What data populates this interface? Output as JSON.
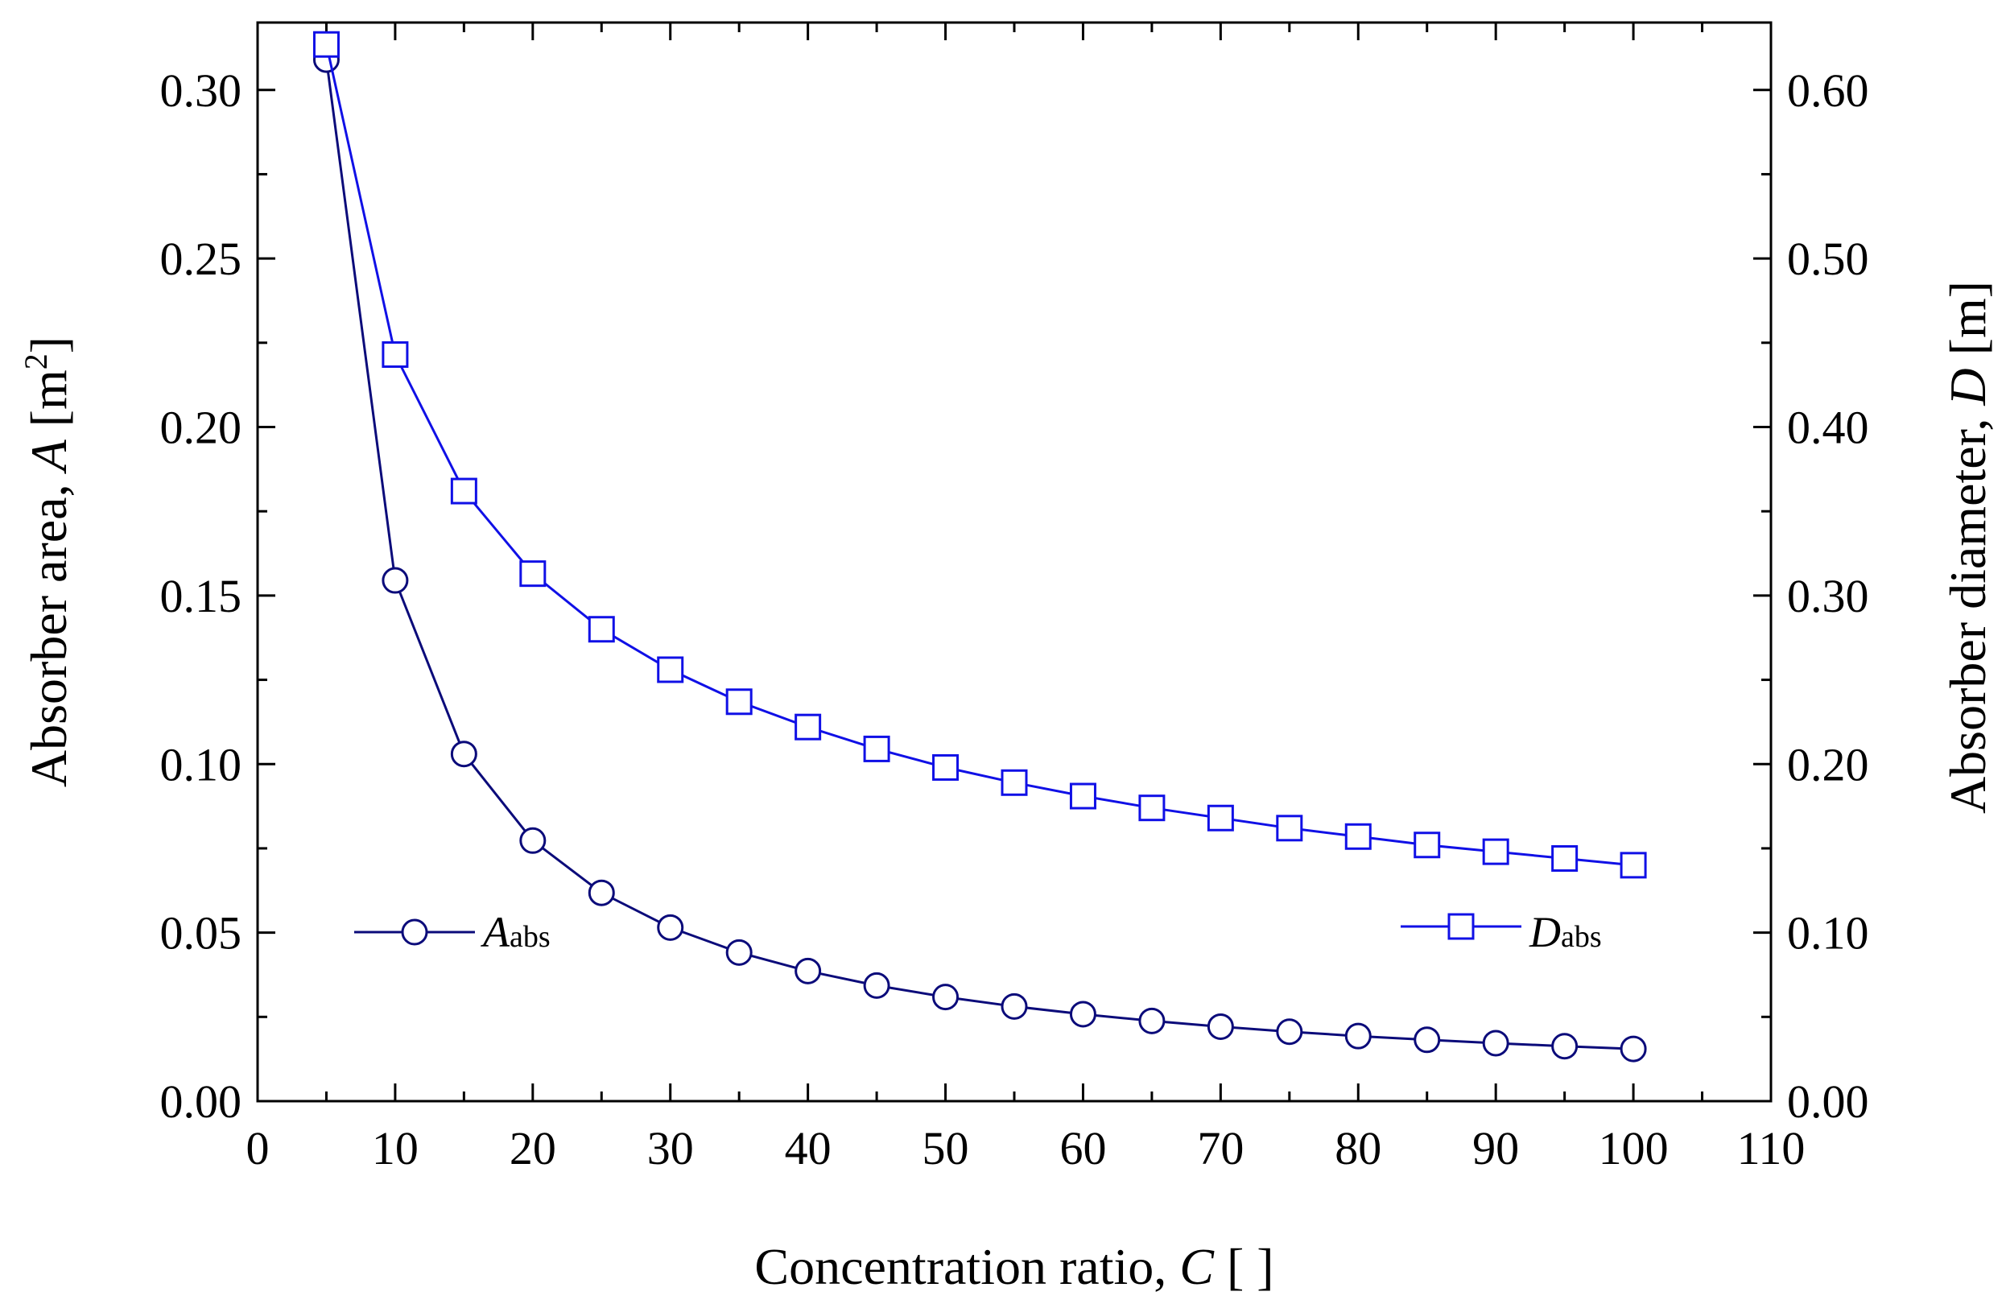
{
  "chart_data": {
    "type": "line",
    "xlabel": {
      "main": "Concentration ratio, ",
      "var": "C",
      "unit": " [ ]"
    },
    "ylabel_left": {
      "main": "Absorber area, ",
      "var": "A",
      "unit_open": " [m",
      "unit_sup": "2",
      "unit_close": "]"
    },
    "ylabel_right": {
      "main": "Absorber diameter, ",
      "var": "D",
      "unit": " [m]"
    },
    "xlim": [
      0,
      110
    ],
    "ylim_left": [
      0,
      0.32
    ],
    "ylim_right": [
      0,
      0.64
    ],
    "x_ticks": [
      0,
      10,
      20,
      30,
      40,
      50,
      60,
      70,
      80,
      90,
      100,
      110
    ],
    "y_left_ticks": [
      "0.00",
      "0.05",
      "0.10",
      "0.15",
      "0.20",
      "0.25",
      "0.30"
    ],
    "y_right_ticks": [
      "0.00",
      "0.10",
      "0.20",
      "0.30",
      "0.40",
      "0.50",
      "0.60"
    ],
    "x": [
      5,
      10,
      15,
      20,
      25,
      30,
      35,
      40,
      45,
      50,
      55,
      60,
      65,
      70,
      75,
      80,
      85,
      90,
      95,
      100
    ],
    "series": [
      {
        "name": "A_abs",
        "legend_main": "A",
        "legend_sub": "abs",
        "axis": "left",
        "marker": "circle",
        "color": "#0b0b7a",
        "values": [
          0.309,
          0.1545,
          0.103,
          0.0773,
          0.0618,
          0.0515,
          0.0441,
          0.0386,
          0.0343,
          0.0309,
          0.0281,
          0.0258,
          0.0238,
          0.0221,
          0.0206,
          0.0193,
          0.0182,
          0.0172,
          0.0163,
          0.0155
        ]
      },
      {
        "name": "D_abs",
        "legend_main": "D",
        "legend_sub": "abs",
        "axis": "right",
        "marker": "square",
        "color": "#1010e6",
        "values": [
          0.627,
          0.443,
          0.362,
          0.313,
          0.28,
          0.256,
          0.237,
          0.222,
          0.209,
          0.198,
          0.189,
          0.181,
          0.174,
          0.168,
          0.162,
          0.157,
          0.152,
          0.148,
          0.144,
          0.14
        ]
      }
    ]
  }
}
